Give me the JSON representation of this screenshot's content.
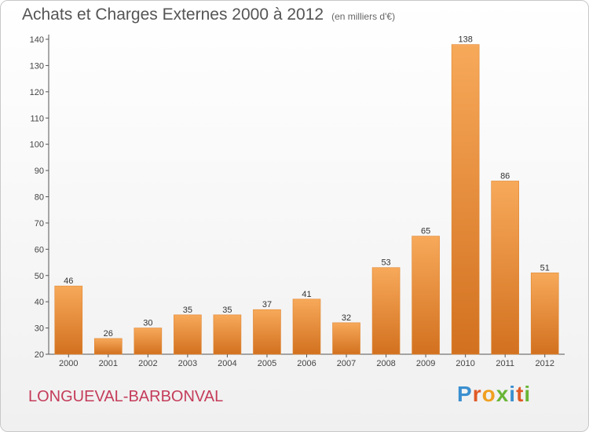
{
  "chart_data": {
    "type": "bar",
    "title": "Achats et Charges Externes 2000 à 2012",
    "subtitle": "(en milliers d'€)",
    "categories": [
      "2000",
      "2001",
      "2002",
      "2003",
      "2004",
      "2005",
      "2006",
      "2007",
      "2008",
      "2009",
      "2010",
      "2011",
      "2012"
    ],
    "values": [
      46,
      26,
      30,
      35,
      35,
      37,
      41,
      32,
      53,
      65,
      138,
      86,
      51
    ],
    "ylim": [
      20,
      140
    ],
    "yticks": [
      20,
      30,
      40,
      50,
      60,
      70,
      80,
      90,
      100,
      110,
      120,
      130,
      140
    ],
    "grid": false,
    "bar_color": "#f0923a",
    "bar_color_light": "#f7a95a",
    "bar_color_dark": "#d2711f"
  },
  "footer": {
    "town": "LONGUEVAL-BARBONVAL",
    "town_color": "#c43c5a",
    "brand": "Proxiti",
    "brand_colors": [
      "#3a8fd0",
      "#e05a26",
      "#f0a020",
      "#6ab536",
      "#3a8fd0",
      "#e05a26",
      "#6ab536"
    ]
  }
}
